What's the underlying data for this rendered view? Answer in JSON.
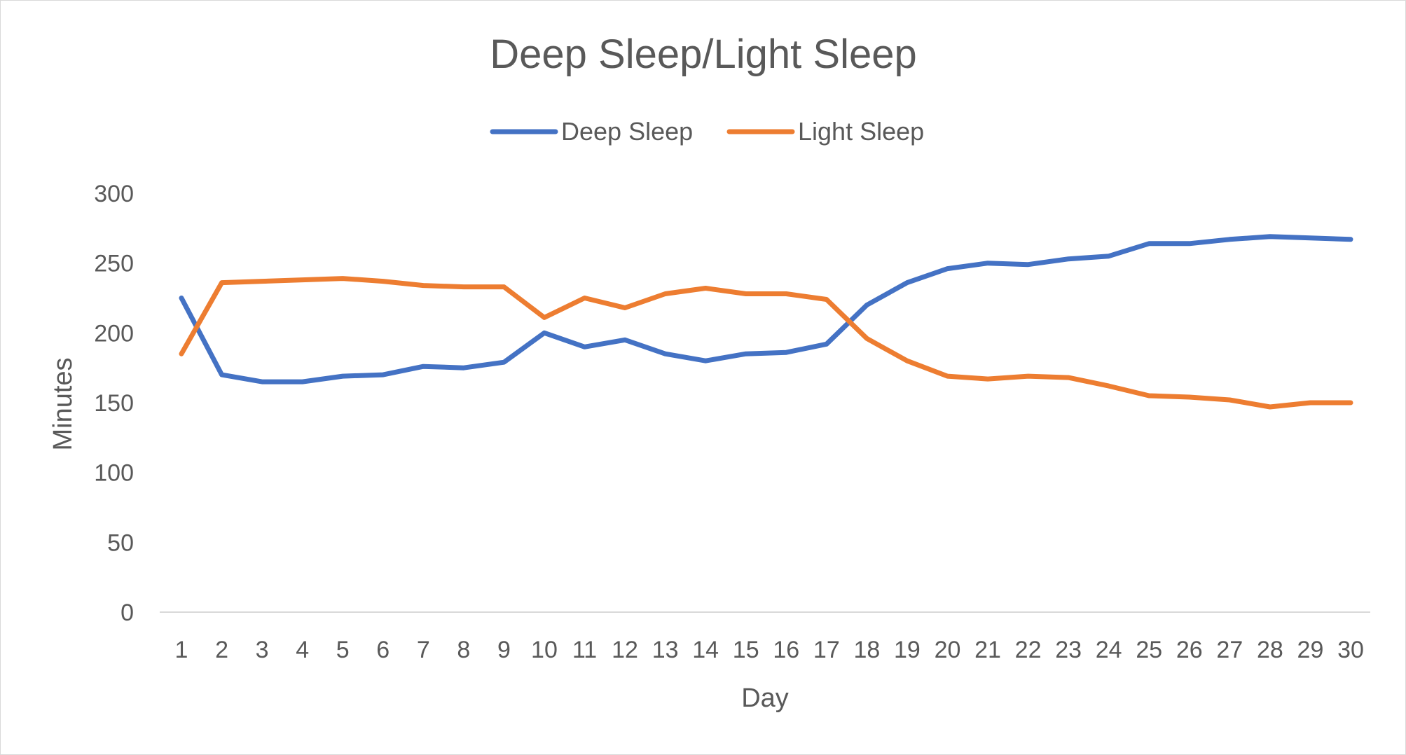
{
  "chart_data": {
    "type": "line",
    "title": "Deep Sleep/Light Sleep",
    "xlabel": "Day",
    "ylabel": "Minutes",
    "x": [
      1,
      2,
      3,
      4,
      5,
      6,
      7,
      8,
      9,
      10,
      11,
      12,
      13,
      14,
      15,
      16,
      17,
      18,
      19,
      20,
      21,
      22,
      23,
      24,
      25,
      26,
      27,
      28,
      29,
      30
    ],
    "y_ticks": [
      0,
      50,
      100,
      150,
      200,
      250,
      300
    ],
    "ylim": [
      0,
      300
    ],
    "grid": false,
    "legend": "top",
    "series": [
      {
        "name": "Deep Sleep",
        "color": "#4472c4",
        "values": [
          225,
          170,
          165,
          165,
          169,
          170,
          176,
          175,
          179,
          200,
          190,
          195,
          185,
          180,
          185,
          186,
          192,
          220,
          236,
          246,
          250,
          249,
          253,
          255,
          264,
          264,
          267,
          269,
          268,
          267
        ]
      },
      {
        "name": "Light Sleep",
        "color": "#ed7d31",
        "values": [
          185,
          236,
          237,
          238,
          239,
          237,
          234,
          233,
          233,
          211,
          225,
          218,
          228,
          232,
          228,
          228,
          224,
          196,
          180,
          169,
          167,
          169,
          168,
          162,
          155,
          154,
          152,
          147,
          150,
          150
        ]
      }
    ]
  }
}
